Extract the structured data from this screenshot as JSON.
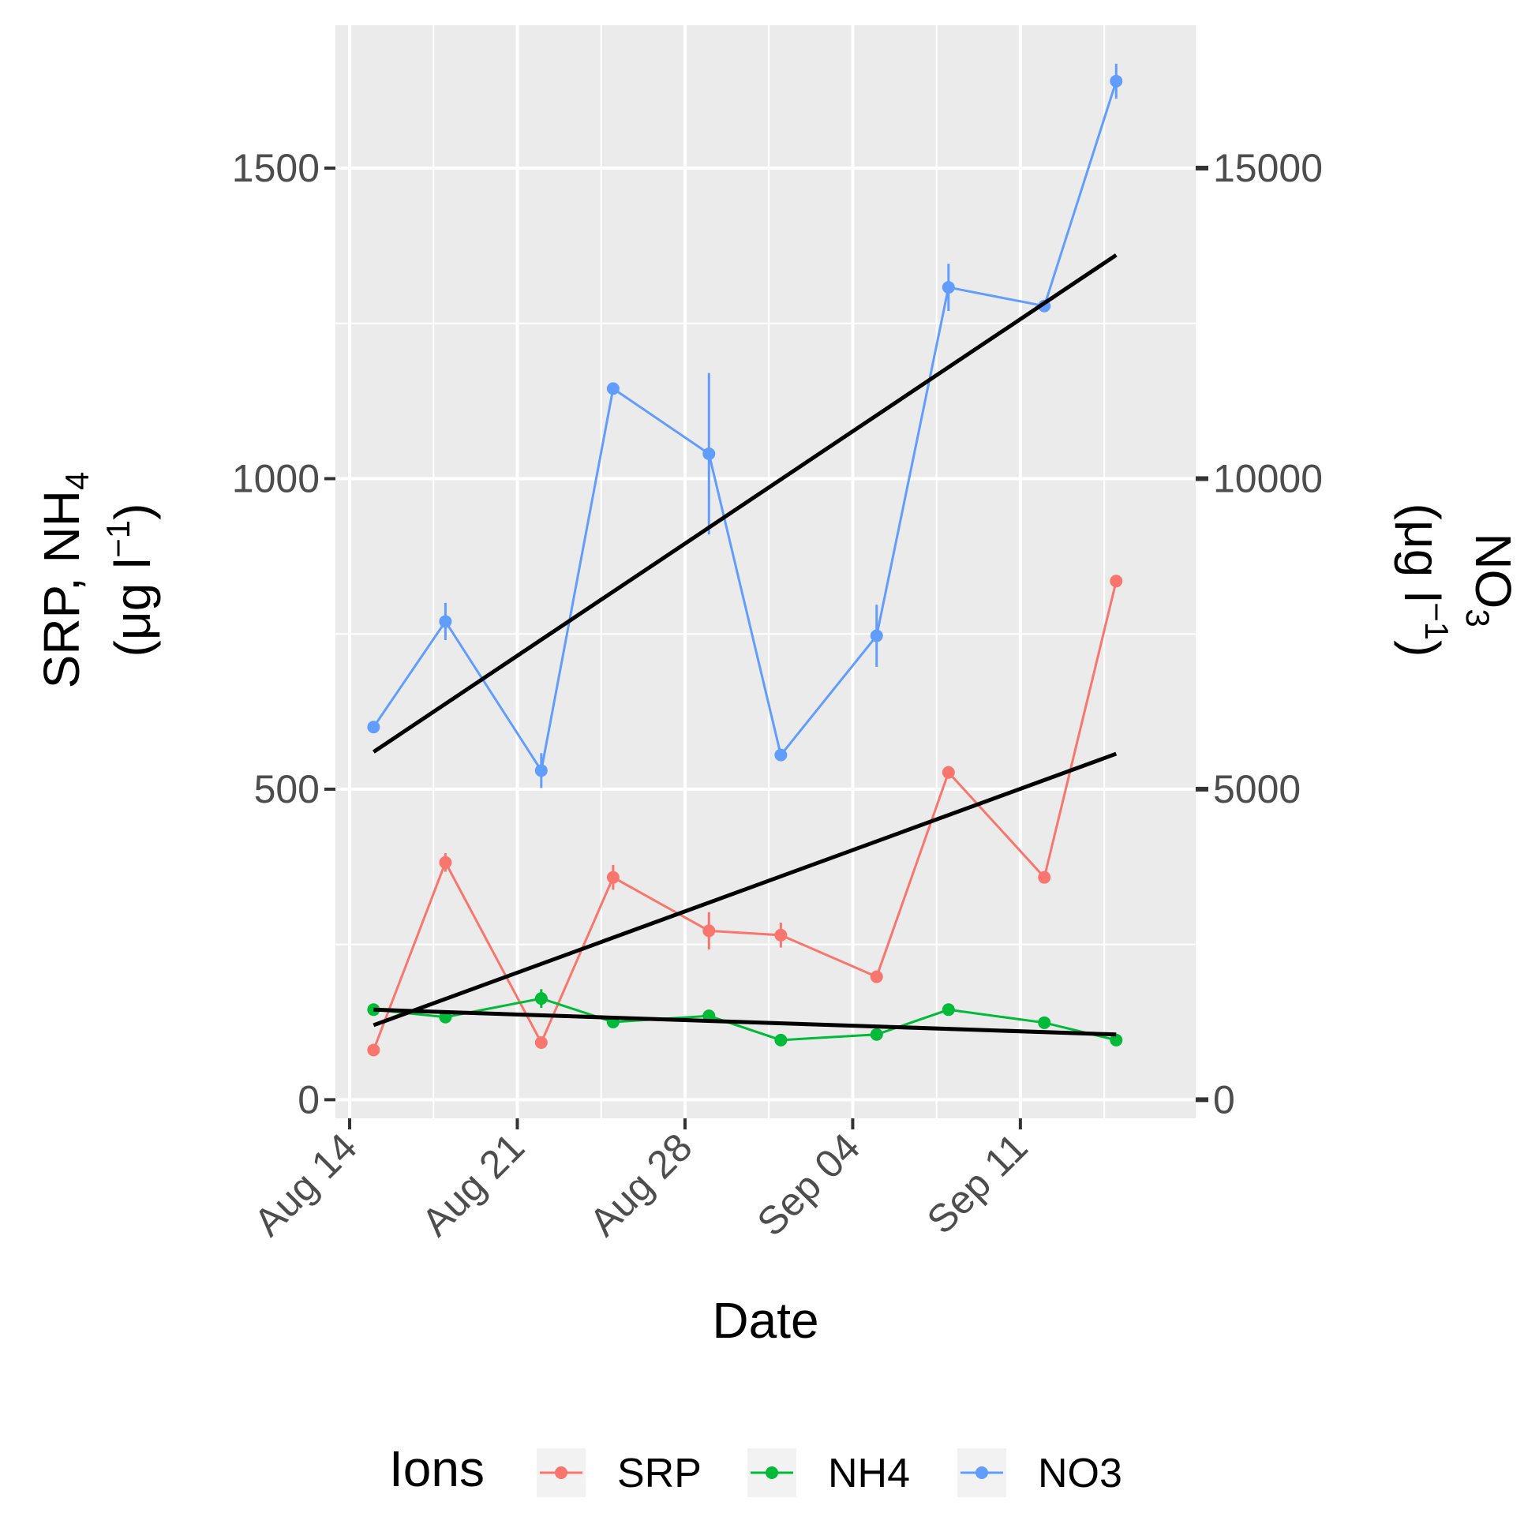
{
  "chart_data": {
    "type": "line",
    "x_axis": {
      "label": "Date",
      "ticks": [
        "Aug 14",
        "Aug 21",
        "Aug 28",
        "Sep 04",
        "Sep 11"
      ],
      "tick_dates": [
        "2017-08-14",
        "2017-08-21",
        "2017-08-28",
        "2017-09-04",
        "2017-09-11"
      ],
      "range": [
        "2017-08-14",
        "2017-09-17"
      ]
    },
    "y_left": {
      "label_main": "SRP, NH",
      "label_main_sub": "4",
      "label_units": "(μg l",
      "label_units_sup": "−1",
      "label_units_close": ")",
      "ticks": [
        0,
        500,
        1000,
        1500
      ],
      "tick_labels": [
        "0",
        "500",
        "1000",
        "1500"
      ],
      "range": [
        -30,
        1730
      ]
    },
    "y_right": {
      "label_main": "NO",
      "label_main_sub": "3",
      "label_units": "(μg l",
      "label_units_sup": "−1",
      "label_units_close": ")",
      "ticks": [
        0,
        5000,
        10000,
        15000
      ],
      "tick_labels": [
        "0",
        "5000",
        "10000",
        "15000"
      ],
      "scale_factor": 10
    },
    "grid": true,
    "legend": {
      "title": "Ions",
      "position": "bottom",
      "entries": [
        "SRP",
        "NH4",
        "NO3"
      ]
    },
    "series": [
      {
        "name": "SRP",
        "color": "#F8766D",
        "axis": "left",
        "points": [
          {
            "x": "2017-08-15",
            "y": 80,
            "err": 0
          },
          {
            "x": "2017-08-18",
            "y": 382,
            "err": 15
          },
          {
            "x": "2017-08-22",
            "y": 92,
            "err": 0
          },
          {
            "x": "2017-08-25",
            "y": 358,
            "err": 20
          },
          {
            "x": "2017-08-29",
            "y": 272,
            "err": 30
          },
          {
            "x": "2017-09-01",
            "y": 265,
            "err": 20
          },
          {
            "x": "2017-09-05",
            "y": 198,
            "err": 10
          },
          {
            "x": "2017-09-08",
            "y": 527,
            "err": 10
          },
          {
            "x": "2017-09-12",
            "y": 358,
            "err": 0
          },
          {
            "x": "2017-09-15",
            "y": 835,
            "err": 0
          }
        ]
      },
      {
        "name": "NH4",
        "color": "#00BA38",
        "axis": "left",
        "points": [
          {
            "x": "2017-08-15",
            "y": 145,
            "err": 0
          },
          {
            "x": "2017-08-18",
            "y": 133,
            "err": 5
          },
          {
            "x": "2017-08-22",
            "y": 163,
            "err": 15
          },
          {
            "x": "2017-08-25",
            "y": 125,
            "err": 0
          },
          {
            "x": "2017-08-29",
            "y": 135,
            "err": 5
          },
          {
            "x": "2017-09-01",
            "y": 96,
            "err": 0
          },
          {
            "x": "2017-09-05",
            "y": 105,
            "err": 0
          },
          {
            "x": "2017-09-08",
            "y": 145,
            "err": 0
          },
          {
            "x": "2017-09-12",
            "y": 124,
            "err": 0
          },
          {
            "x": "2017-09-15",
            "y": 96,
            "err": 0
          }
        ]
      },
      {
        "name": "NO3",
        "color": "#619CFF",
        "axis": "right",
        "points": [
          {
            "x": "2017-08-15",
            "y": 6000,
            "err": 0
          },
          {
            "x": "2017-08-18",
            "y": 7700,
            "err": 300
          },
          {
            "x": "2017-08-22",
            "y": 5300,
            "err": 280
          },
          {
            "x": "2017-08-25",
            "y": 11450,
            "err": 0
          },
          {
            "x": "2017-08-29",
            "y": 10400,
            "err": 1300
          },
          {
            "x": "2017-09-01",
            "y": 5550,
            "err": 0
          },
          {
            "x": "2017-09-05",
            "y": 7470,
            "err": 500
          },
          {
            "x": "2017-09-08",
            "y": 13080,
            "err": 380
          },
          {
            "x": "2017-09-12",
            "y": 12780,
            "err": 100
          },
          {
            "x": "2017-09-15",
            "y": 16400,
            "err": 280
          }
        ]
      }
    ],
    "trend_lines": [
      {
        "series": "NO3",
        "color": "#000000",
        "axis": "right",
        "x": [
          "2017-08-15",
          "2017-09-15"
        ],
        "y": [
          5600,
          13600
        ]
      },
      {
        "series": "SRP",
        "color": "#000000",
        "axis": "left",
        "x": [
          "2017-08-15",
          "2017-09-15"
        ],
        "y": [
          120,
          557
        ]
      },
      {
        "series": "NH4",
        "color": "#000000",
        "axis": "left",
        "x": [
          "2017-08-15",
          "2017-09-15"
        ],
        "y": [
          145,
          105
        ]
      }
    ]
  }
}
